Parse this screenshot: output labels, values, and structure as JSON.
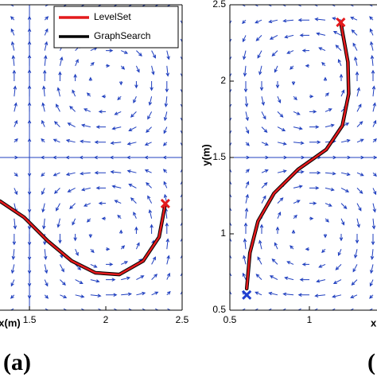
{
  "chart_data": [
    {
      "type": "line",
      "xlabel": "x(m)",
      "panel_label": "(a)",
      "xlim": [
        1.307,
        2.5
      ],
      "ylim": [
        0.5,
        2.5
      ],
      "xticks": [
        1.5,
        2,
        2.5
      ],
      "legend": "upper right",
      "series": [
        {
          "name": "GraphSearch",
          "color": "#000000",
          "x": [
            1.307,
            1.464,
            1.62,
            1.776,
            1.932,
            2.089,
            2.245,
            2.349,
            2.39
          ],
          "values": [
            1.214,
            1.109,
            0.953,
            0.823,
            0.745,
            0.734,
            0.823,
            0.979,
            1.198
          ]
        },
        {
          "name": "LevelSet",
          "color": "#e41a1c",
          "x": [
            1.307,
            1.464,
            1.62,
            1.776,
            1.932,
            2.089,
            2.245,
            2.349,
            2.39
          ],
          "values": [
            1.214,
            1.109,
            0.953,
            0.823,
            0.745,
            0.734,
            0.823,
            0.979,
            1.198
          ]
        }
      ],
      "markers": [
        {
          "x": 2.39,
          "y": 1.198,
          "color": "#e41a1c"
        }
      ]
    },
    {
      "type": "line",
      "xlabel": "x",
      "ylabel": "y(m)",
      "panel_label": "(",
      "xlim": [
        0.5,
        1.425
      ],
      "ylim": [
        0.5,
        2.5
      ],
      "xticks": [
        0.5,
        1
      ],
      "yticks": [
        0.5,
        1,
        1.5,
        2,
        2.5
      ],
      "series": [
        {
          "color": "#000000",
          "x": [
            0.606,
            0.626,
            0.677,
            0.778,
            0.929,
            1.106,
            1.207,
            1.247,
            1.242,
            1.197
          ],
          "values": [
            0.641,
            0.875,
            1.083,
            1.266,
            1.422,
            1.552,
            1.708,
            1.917,
            2.125,
            2.385
          ]
        },
        {
          "color": "#e41a1c",
          "x": [
            0.606,
            0.626,
            0.677,
            0.778,
            0.929,
            1.106,
            1.207,
            1.247,
            1.242,
            1.197
          ],
          "values": [
            0.641,
            0.875,
            1.083,
            1.266,
            1.422,
            1.552,
            1.708,
            1.917,
            2.125,
            2.385
          ]
        }
      ],
      "markers": [
        {
          "x": 0.606,
          "y": 0.6,
          "color": "#1f3fd0"
        },
        {
          "x": 1.197,
          "y": 2.385,
          "color": "#e41a1c"
        }
      ]
    }
  ]
}
